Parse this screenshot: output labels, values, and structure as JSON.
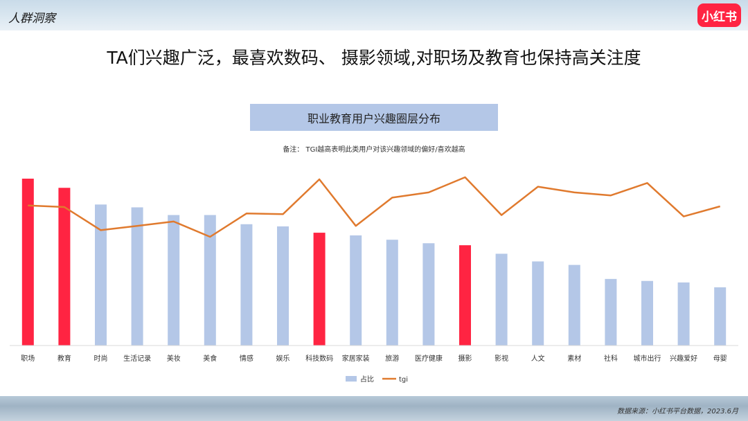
{
  "header": {
    "section_title": "人群洞察",
    "logo_text": "小红书"
  },
  "headline": "TA们兴趣广泛，最喜欢数码、 摄影领域,对职场及教育也保持高关注度",
  "chart_title": "职业教育用户兴趣圈层分布",
  "note": "备注： TGI越高表明此类用户对该兴趣领域的偏好/喜欢越高",
  "source": "数据来源：小红书平台数据，2023.6月",
  "colors": {
    "bar_default": "#b4c7e7",
    "bar_highlight": "#ff2442",
    "line": "#e07a2e",
    "title_box": "#b4c7e7",
    "logo_bg": "#ff2442"
  },
  "chart_data": {
    "type": "bar",
    "title": "职业教育用户兴趣圈层分布",
    "categories": [
      "职场",
      "教育",
      "时尚",
      "生活记录",
      "美妆",
      "美食",
      "情感",
      "娱乐",
      "科技数码",
      "家居家装",
      "旅游",
      "医疗健康",
      "摄影",
      "影视",
      "人文",
      "素材",
      "社科",
      "城市出行",
      "兴趣爱好",
      "母婴"
    ],
    "series": [
      {
        "name": "占比",
        "type": "bar",
        "values": [
          100,
          94.5,
          84.5,
          82.8,
          78.2,
          78.2,
          72.7,
          71.4,
          67.6,
          66.0,
          63.4,
          61.3,
          60.1,
          55.0,
          50.4,
          48.3,
          39.9,
          38.7,
          37.8,
          34.9
        ],
        "highlight": [
          true,
          true,
          false,
          false,
          false,
          false,
          false,
          false,
          true,
          false,
          false,
          false,
          true,
          false,
          false,
          false,
          false,
          false,
          false,
          false
        ]
      },
      {
        "name": "tgi",
        "type": "line",
        "values": [
          83.8,
          82.9,
          69.6,
          72.1,
          74.6,
          65.8,
          79.2,
          78.8,
          98.8,
          72.1,
          88.3,
          91.3,
          100,
          78.3,
          94.6,
          91.3,
          89.6,
          96.7,
          77.5,
          83.3
        ]
      }
    ],
    "legend": {
      "position": "bottom",
      "entries": [
        "占比",
        "tgi"
      ]
    },
    "grid": false,
    "y_axis_visible": false,
    "ylim": [
      0,
      100
    ]
  }
}
